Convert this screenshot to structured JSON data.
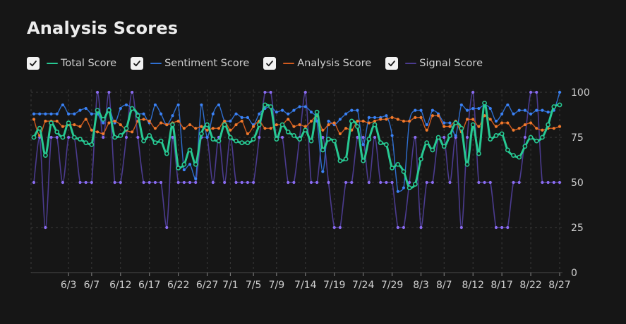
{
  "title": "Analysis Scores",
  "legend": [
    {
      "label": "Total Score",
      "color": "#27c993",
      "checked": true
    },
    {
      "label": "Sentiment Score",
      "color": "#2f6fd1",
      "checked": true
    },
    {
      "label": "Analysis Score",
      "color": "#d05a1e",
      "checked": true
    },
    {
      "label": "Signal Score",
      "color": "#4b3b8f",
      "checked": true
    }
  ],
  "chart_data": {
    "type": "line",
    "x_ticks": [
      "6/3",
      "6/7",
      "6/12",
      "6/17",
      "6/22",
      "6/27",
      "7/1",
      "7/5",
      "7/9",
      "7/14",
      "7/19",
      "7/24",
      "7/29",
      "8/3",
      "8/7",
      "8/12",
      "8/17",
      "8/22",
      "8/27"
    ],
    "y_ticks": [
      0,
      25,
      50,
      75,
      100
    ],
    "ylim": [
      0,
      100
    ],
    "grid": true,
    "x": [
      "5/28",
      "5/29",
      "5/30",
      "5/31",
      "6/1",
      "6/2",
      "6/3",
      "6/4",
      "6/5",
      "6/6",
      "6/7",
      "6/8",
      "6/9",
      "6/10",
      "6/11",
      "6/12",
      "6/13",
      "6/14",
      "6/15",
      "6/16",
      "6/17",
      "6/18",
      "6/19",
      "6/20",
      "6/21",
      "6/22",
      "6/23",
      "6/24",
      "6/25",
      "6/26",
      "6/27",
      "6/28",
      "6/29",
      "6/30",
      "7/1",
      "7/2",
      "7/3",
      "7/4",
      "7/5",
      "7/6",
      "7/7",
      "7/8",
      "7/9",
      "7/10",
      "7/11",
      "7/12",
      "7/13",
      "7/14",
      "7/15",
      "7/16",
      "7/17",
      "7/18",
      "7/19",
      "7/20",
      "7/21",
      "7/22",
      "7/23",
      "7/24",
      "7/25",
      "7/26",
      "7/27",
      "7/28",
      "7/29",
      "7/30",
      "7/31",
      "8/1",
      "8/2",
      "8/3",
      "8/4",
      "8/5",
      "8/6",
      "8/7",
      "8/8",
      "8/9",
      "8/10",
      "8/11",
      "8/12",
      "8/13",
      "8/14",
      "8/15",
      "8/16",
      "8/17",
      "8/18",
      "8/19",
      "8/20",
      "8/21",
      "8/22",
      "8/23",
      "8/24",
      "8/25",
      "8/26",
      "8/27"
    ],
    "series": [
      {
        "name": "Signal Score",
        "color": "#4b3b8f",
        "values": [
          50,
          75,
          25,
          75,
          75,
          50,
          75,
          75,
          50,
          50,
          50,
          100,
          75,
          100,
          50,
          50,
          75,
          100,
          75,
          50,
          50,
          50,
          50,
          25,
          75,
          50,
          50,
          50,
          50,
          75,
          75,
          50,
          75,
          50,
          75,
          50,
          50,
          50,
          50,
          75,
          100,
          100,
          75,
          75,
          50,
          50,
          75,
          100,
          50,
          50,
          75,
          50,
          25,
          25,
          50,
          50,
          75,
          75,
          50,
          75,
          50,
          50,
          50,
          25,
          25,
          50,
          75,
          25,
          50,
          50,
          75,
          75,
          50,
          75,
          25,
          75,
          100,
          50,
          50,
          50,
          25,
          25,
          25,
          50,
          50,
          75,
          100,
          100,
          50,
          50,
          50,
          50
        ]
      },
      {
        "name": "Sentiment Score",
        "color": "#2f6fd1",
        "values": [
          88,
          88,
          88,
          88,
          88,
          93,
          88,
          88,
          90,
          91,
          88,
          88,
          83,
          91,
          83,
          91,
          93,
          91,
          88,
          88,
          83,
          93,
          88,
          82,
          87,
          93,
          57,
          60,
          52,
          93,
          75,
          88,
          93,
          84,
          84,
          88,
          86,
          86,
          82,
          88,
          91,
          92,
          89,
          90,
          88,
          90,
          92,
          92,
          89,
          84,
          56,
          84,
          82,
          85,
          88,
          90,
          90,
          71,
          86,
          86,
          86,
          87,
          76,
          45,
          47,
          84,
          90,
          90,
          82,
          90,
          88,
          83,
          83,
          76,
          93,
          90,
          91,
          91,
          93,
          91,
          84,
          88,
          93,
          88,
          90,
          90,
          88,
          90,
          90,
          89,
          90,
          100
        ]
      },
      {
        "name": "Analysis Score",
        "color": "#d05a1e",
        "values": [
          85,
          76,
          84,
          84,
          84,
          81,
          82,
          82,
          81,
          85,
          79,
          78,
          77,
          83,
          84,
          82,
          79,
          78,
          84,
          85,
          84,
          80,
          83,
          82,
          83,
          84,
          80,
          82,
          80,
          81,
          79,
          80,
          80,
          84,
          79,
          82,
          84,
          77,
          81,
          84,
          80,
          80,
          82,
          82,
          85,
          81,
          82,
          81,
          84,
          87,
          79,
          82,
          83,
          77,
          80,
          79,
          84,
          84,
          83,
          84,
          85,
          85,
          86,
          85,
          84,
          84,
          86,
          86,
          79,
          87,
          87,
          81,
          81,
          84,
          78,
          85,
          85,
          81,
          87,
          85,
          81,
          83,
          83,
          79,
          80,
          82,
          83,
          80,
          79,
          80,
          80,
          81
        ]
      },
      {
        "name": "Total Score",
        "color": "#27c993",
        "values": [
          75,
          80,
          65,
          83,
          78,
          75,
          83,
          75,
          74,
          72,
          71,
          90,
          85,
          90,
          75,
          76,
          80,
          91,
          87,
          73,
          76,
          72,
          73,
          66,
          82,
          58,
          60,
          68,
          60,
          77,
          82,
          74,
          73,
          82,
          75,
          73,
          72,
          72,
          74,
          82,
          93,
          92,
          74,
          82,
          78,
          76,
          74,
          79,
          73,
          89,
          68,
          74,
          73,
          62,
          63,
          84,
          81,
          62,
          74,
          82,
          72,
          71,
          58,
          60,
          56,
          47,
          49,
          63,
          72,
          68,
          75,
          70,
          76,
          83,
          80,
          60,
          82,
          66,
          94,
          74,
          76,
          77,
          68,
          65,
          64,
          70,
          75,
          73,
          75,
          82,
          92,
          93
        ]
      }
    ]
  }
}
